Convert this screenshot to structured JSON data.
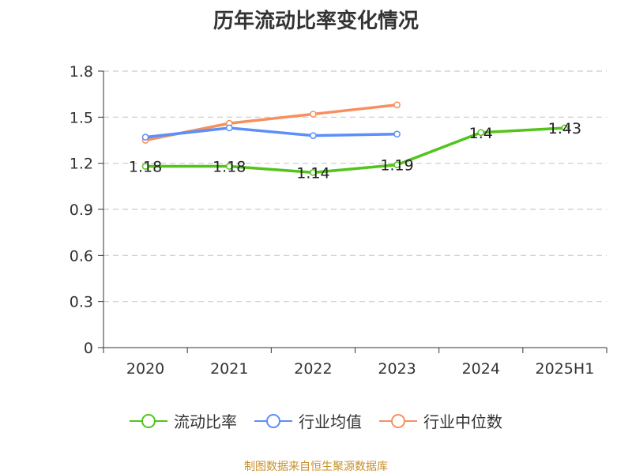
{
  "chart_data": {
    "type": "line",
    "title": "历年流动比率变化情况",
    "categories": [
      "2020",
      "2021",
      "2022",
      "2023",
      "2024",
      "2025H1"
    ],
    "ylim": [
      0,
      1.8
    ],
    "yticks": [
      "0",
      "0.3",
      "0.6",
      "0.9",
      "1.2",
      "1.5",
      "1.8"
    ],
    "grid": true,
    "legend_position": "bottom",
    "series": [
      {
        "name": "流动比率",
        "color": "#52c41a",
        "values": [
          1.18,
          1.18,
          1.14,
          1.19,
          1.4,
          1.43
        ],
        "labels": [
          "1.18",
          "1.18",
          "1.14",
          "1.19",
          "1.4",
          "1.43"
        ]
      },
      {
        "name": "行业均值",
        "color": "#5b8ff9",
        "values": [
          1.37,
          1.43,
          1.38,
          1.39,
          null,
          null
        ]
      },
      {
        "name": "行业中位数",
        "color": "#f6905e",
        "values": [
          1.35,
          1.46,
          1.52,
          1.58,
          null,
          null
        ]
      }
    ]
  },
  "footer": {
    "source": "制图数据来自恒生聚源数据库"
  }
}
